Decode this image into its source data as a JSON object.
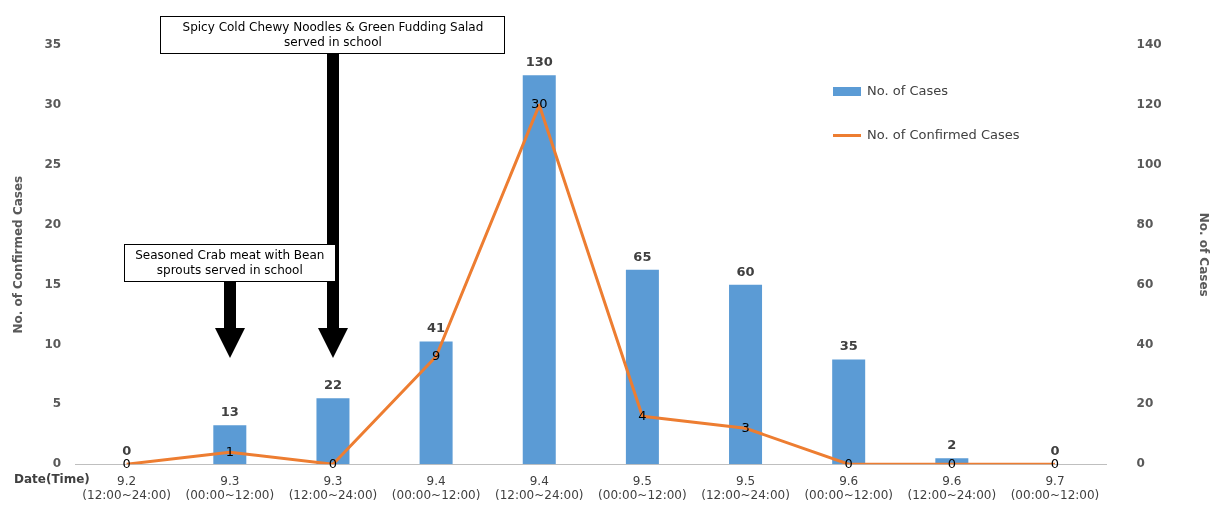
{
  "chart_data": {
    "type": "bar",
    "xlabel": "Date(Time)",
    "ylabel": "No. of Confirmed Cases",
    "y2label": "No. of Cases",
    "categories": [
      "9.2 (12:00~24:00)",
      "9.3 (00:00~12:00)",
      "9.3 (12:00~24:00)",
      "9.4 (00:00~12:00)",
      "9.4 (12:00~24:00)",
      "9.5 (00:00~12:00)",
      "9.5 (12:00~24:00)",
      "9.6 (00:00~12:00)",
      "9.6 (12:00~24:00)",
      "9.7 (00:00~12:00)"
    ],
    "series": [
      {
        "name": "No. of Cases",
        "axis": "y2",
        "color": "#5b9bd5",
        "values": [
          0,
          13,
          22,
          41,
          130,
          65,
          60,
          35,
          2,
          0
        ]
      },
      {
        "name": "No. of Confirmed Cases",
        "type": "line",
        "axis": "y",
        "color": "#ed7d31",
        "values": [
          0,
          1,
          0,
          9,
          30,
          4,
          3,
          0,
          0,
          0
        ]
      }
    ],
    "ylim": [
      0,
      35
    ],
    "yticks": [
      0,
      5,
      10,
      15,
      20,
      25,
      30,
      35
    ],
    "y2lim": [
      0,
      140
    ],
    "y2ticks": [
      0,
      20,
      40,
      60,
      80,
      100,
      120,
      140
    ],
    "data_labels": true,
    "grid": false,
    "legend": "top right",
    "marker": "none",
    "line_style": "solid",
    "annotations": [
      "Spicy Cold Chewy Noodles & Green Fudding Salad served in school",
      "Seasoned Crab meat with Bean sprouts served in school"
    ]
  }
}
